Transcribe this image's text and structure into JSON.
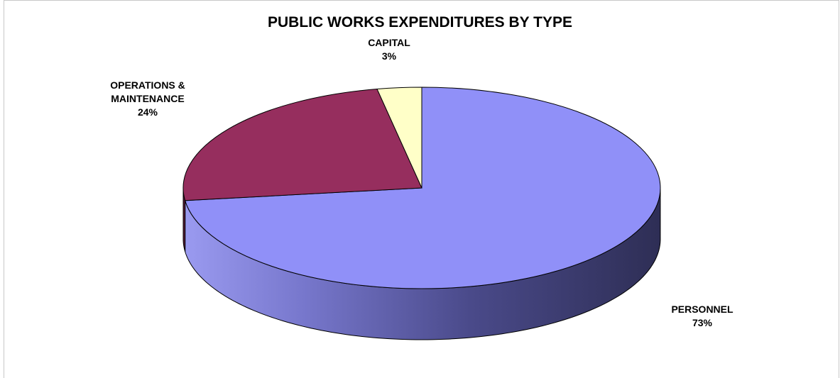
{
  "chart_data": {
    "type": "pie",
    "title": "PUBLIC WORKS EXPENDITURES BY TYPE",
    "slices": [
      {
        "label": "PERSONNEL",
        "value": 73,
        "value_label": "73%",
        "color": "#9090f8"
      },
      {
        "label": "OPERATIONS &",
        "label2": "MAINTENANCE",
        "value": 24,
        "value_label": "24%",
        "color": "#962e5e"
      },
      {
        "label": "CAPITAL",
        "value": 3,
        "value_label": "3%",
        "color": "#ffffc8"
      }
    ],
    "style": "3d",
    "legend": "none"
  }
}
